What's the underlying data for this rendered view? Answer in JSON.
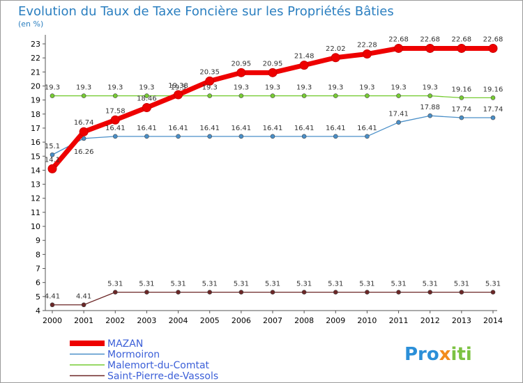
{
  "chart_data": {
    "type": "line",
    "title": "Evolution du Taux de Taxe Foncière sur les Propriétés Bâties",
    "subtitle": "(en %)",
    "xlabel": "",
    "ylabel": "(en %)",
    "x": [
      "2000",
      "2001",
      "2002",
      "2003",
      "2004",
      "2005",
      "2006",
      "2007",
      "2008",
      "2009",
      "2010",
      "2011",
      "2012",
      "2013",
      "2014"
    ],
    "ylim": [
      4,
      23
    ],
    "yticks": [
      "4",
      "5",
      "6",
      "7",
      "8",
      "9",
      "10",
      "11",
      "12",
      "13",
      "14",
      "15",
      "16",
      "17",
      "18",
      "19",
      "20",
      "21",
      "22",
      "23"
    ],
    "series": [
      {
        "name": "MAZAN",
        "color": "#ee0000",
        "values": [
          14.1,
          16.74,
          17.58,
          18.46,
          19.38,
          20.35,
          20.95,
          20.95,
          21.48,
          22.02,
          22.28,
          22.68,
          22.68,
          22.68,
          22.68
        ],
        "labels": [
          "14.1",
          "16.74",
          "17.58",
          "18.46",
          "19.38",
          "20.35",
          "20.95",
          "20.95",
          "21.48",
          "22.02",
          "22.28",
          "22.68",
          "22.68",
          "22.68",
          "22.68"
        ]
      },
      {
        "name": "Mormoiron",
        "color": "#4a8fc8",
        "values": [
          15.1,
          16.26,
          16.41,
          16.41,
          16.41,
          16.41,
          16.41,
          16.41,
          16.41,
          16.41,
          16.41,
          17.41,
          17.88,
          17.74,
          17.74
        ],
        "labels": [
          "15.1",
          "16.26",
          "16.41",
          "16.41",
          "16.41",
          "16.41",
          "16.41",
          "16.41",
          "16.41",
          "16.41",
          "16.41",
          "17.41",
          "17.88",
          "17.74",
          "17.74"
        ]
      },
      {
        "name": "Malemort-du-Comtat",
        "color": "#77cc33",
        "values": [
          19.3,
          19.3,
          19.3,
          19.3,
          19.3,
          19.3,
          19.3,
          19.3,
          19.3,
          19.3,
          19.3,
          19.3,
          19.3,
          19.16,
          19.16
        ],
        "labels": [
          "19.3",
          "19.3",
          "19.3",
          "19.3",
          "19.3",
          "19.3",
          "19.3",
          "19.3",
          "19.3",
          "19.3",
          "19.3",
          "19.3",
          "19.3",
          "19.16",
          "19.16"
        ]
      },
      {
        "name": "Saint-Pierre-de-Vassols",
        "color": "#6b2626",
        "values": [
          4.41,
          4.41,
          5.31,
          5.31,
          5.31,
          5.31,
          5.31,
          5.31,
          5.31,
          5.31,
          5.31,
          5.31,
          5.31,
          5.31,
          5.31
        ],
        "labels": [
          "4.41",
          "4.41",
          "5.31",
          "5.31",
          "5.31",
          "5.31",
          "5.31",
          "5.31",
          "5.31",
          "5.31",
          "5.31",
          "5.31",
          "5.31",
          "5.31",
          "5.31"
        ]
      }
    ],
    "legend_position": "bottom-left",
    "grid": false
  },
  "logo": {
    "text": "Proxiti"
  }
}
